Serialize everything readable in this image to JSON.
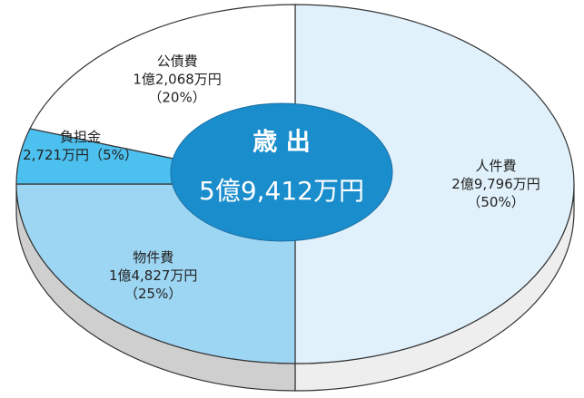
{
  "chart_data": {
    "type": "pie",
    "center_title": "歳 出",
    "center_total": "5億9,412万円",
    "categories": [
      "人件費",
      "物件費",
      "負担金",
      "公債費"
    ],
    "amounts": [
      "2億9,796万円",
      "1億4,827万円",
      "2,721万円",
      "1億2,068万円"
    ],
    "values": [
      50,
      25,
      5,
      20
    ],
    "value_labels": [
      "（50%）",
      "（25%）",
      "（5%）",
      "（20%）"
    ],
    "colors": [
      "#e1f1fb",
      "#9dd6f3",
      "#4cc0ee",
      "#ffffff"
    ],
    "center_color": "#1a8dcc"
  }
}
